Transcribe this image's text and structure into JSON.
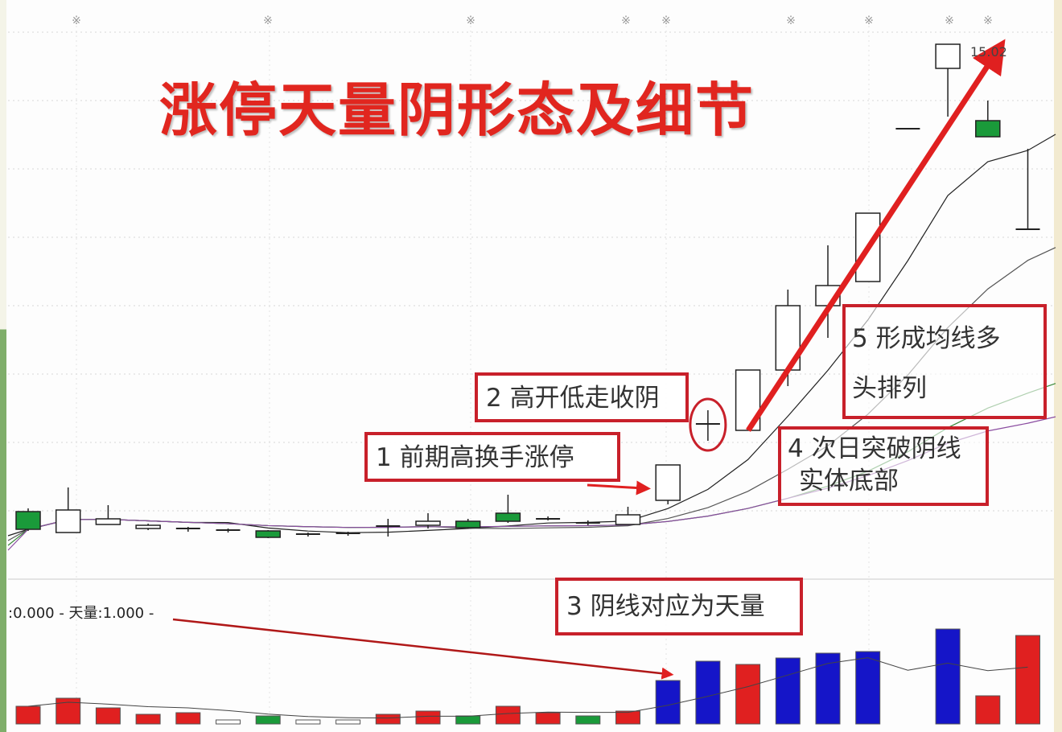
{
  "title": "涨停天量阴形态及细节",
  "annotations": [
    {
      "id": "1",
      "lines": [
        "1 前期高换手涨停"
      ]
    },
    {
      "id": "2",
      "lines": [
        "2 高开低走收阴"
      ]
    },
    {
      "id": "3",
      "lines": [
        "3 阴线对应为天量"
      ]
    },
    {
      "id": "4",
      "lines": [
        "4 次日突破阴线",
        "实体底部"
      ]
    },
    {
      "id": "5",
      "lines": [
        "5 形成均线多",
        "头排列"
      ]
    }
  ],
  "volume_label": ":0.000 - 天量:1.000 -",
  "colors": {
    "up": "#e02020",
    "down": "#1a9a3a",
    "volume_up_big": "#1515c8",
    "annotation": "#c8202a",
    "title": "#e1261f"
  },
  "chart_data": {
    "type": "candlestick",
    "title": "涨停天量阴形态及细节",
    "high_label": "15.02",
    "grid": "dotted",
    "candles": [
      {
        "o": 9.21,
        "h": 9.25,
        "l": 8.97,
        "c": 8.99
      },
      {
        "o": 8.95,
        "h": 9.51,
        "l": 8.95,
        "c": 9.23
      },
      {
        "o": 9.05,
        "h": 9.29,
        "l": 9.05,
        "c": 9.12
      },
      {
        "o": 9.0,
        "h": 9.06,
        "l": 8.98,
        "c": 9.04
      },
      {
        "o": 8.97,
        "h": 9.02,
        "l": 8.96,
        "c": 9.0
      },
      {
        "o": 8.96,
        "h": 9.0,
        "l": 8.95,
        "c": 8.98
      },
      {
        "o": 8.97,
        "h": 8.98,
        "l": 8.88,
        "c": 8.89
      },
      {
        "o": 8.92,
        "h": 8.95,
        "l": 8.9,
        "c": 8.93
      },
      {
        "o": 8.92,
        "h": 8.96,
        "l": 8.91,
        "c": 8.94
      },
      {
        "o": 9.02,
        "h": 9.12,
        "l": 8.9,
        "c": 9.03
      },
      {
        "o": 9.04,
        "h": 9.19,
        "l": 9.0,
        "c": 9.09
      },
      {
        "o": 9.09,
        "h": 9.12,
        "l": 9.0,
        "c": 9.01
      },
      {
        "o": 9.19,
        "h": 9.42,
        "l": 9.07,
        "c": 9.09
      },
      {
        "o": 9.12,
        "h": 9.15,
        "l": 9.1,
        "c": 9.12
      },
      {
        "o": 9.07,
        "h": 9.1,
        "l": 9.04,
        "c": 9.07
      },
      {
        "o": 9.05,
        "h": 9.27,
        "l": 9.05,
        "c": 9.17
      },
      {
        "o": 9.35,
        "h": 9.79,
        "l": 9.3,
        "c": 9.79
      },
      {
        "o": 10.3,
        "h": 10.47,
        "l": 10.09,
        "c": 10.28
      },
      {
        "o": 10.22,
        "h": 10.97,
        "l": 10.22,
        "c": 10.97
      },
      {
        "o": 10.97,
        "h": 11.97,
        "l": 10.77,
        "c": 11.77
      },
      {
        "o": 11.77,
        "h": 12.52,
        "l": 11.37,
        "c": 12.02
      },
      {
        "o": 12.07,
        "h": 12.92,
        "l": 12.07,
        "c": 12.92
      },
      {
        "o": 13.97,
        "h": 13.97,
        "l": 13.97,
        "c": 13.97
      },
      {
        "o": 14.72,
        "h": 15.02,
        "l": 14.12,
        "c": 15.02
      },
      {
        "o": 14.07,
        "h": 14.32,
        "l": 13.87,
        "c": 13.87
      },
      {
        "o": 12.72,
        "h": 13.72,
        "l": 12.72,
        "c": 12.72
      }
    ],
    "volume": [
      22,
      32,
      20,
      12,
      14,
      5,
      10,
      5,
      5,
      12,
      16,
      10,
      22,
      14,
      10,
      16,
      54,
      78,
      74,
      82,
      88,
      90,
      0,
      118,
      35,
      110
    ],
    "volume_colors": [
      "up",
      "up",
      "up",
      "up",
      "up",
      "flat",
      "down",
      "flat",
      "flat",
      "up",
      "up",
      "down",
      "up",
      "up",
      "down",
      "up",
      "big",
      "big",
      "up",
      "big",
      "big",
      "big",
      "flat",
      "big",
      "up",
      "up"
    ],
    "moving_averages": [
      5,
      10,
      20,
      30
    ]
  }
}
